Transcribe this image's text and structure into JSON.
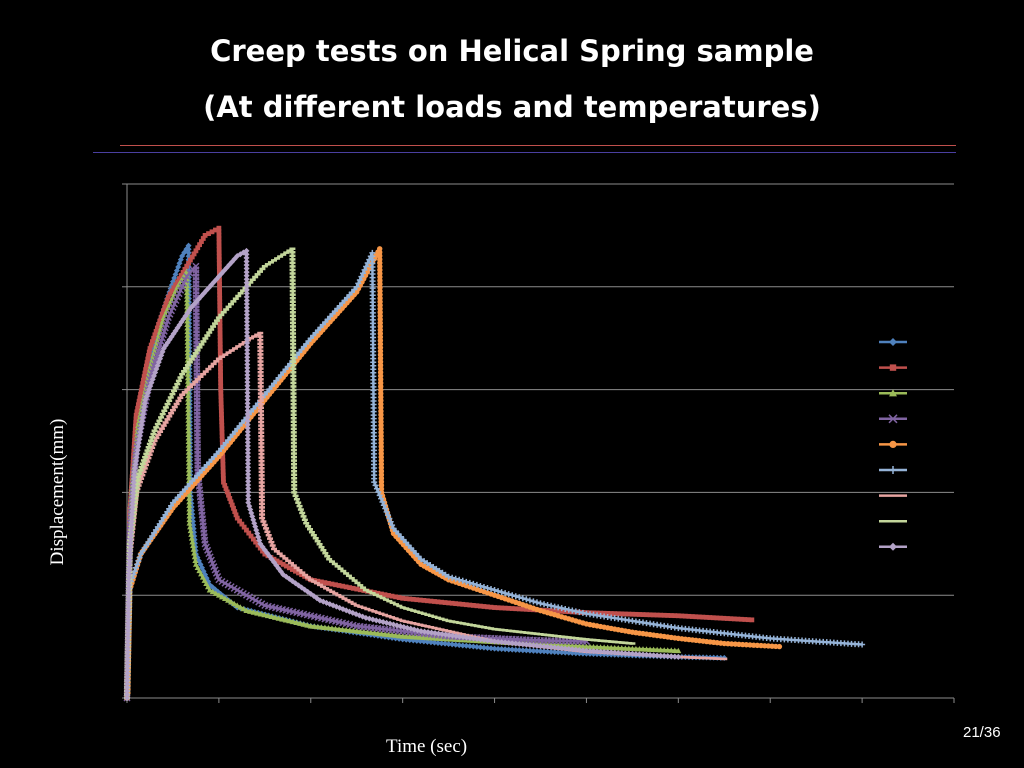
{
  "slide": {
    "title_line1": "Creep tests on Helical Spring sample",
    "title_line2": "(At different loads and temperatures)",
    "page_number": "21/36",
    "rule_colors": [
      "#c0504d",
      "#4a3fa0"
    ]
  },
  "chart_data": {
    "type": "line",
    "title": "",
    "xlabel": "Time (sec)",
    "ylabel": "Displacement(mm)",
    "xlim": [
      0,
      900
    ],
    "ylim": [
      0,
      500
    ],
    "grid": true,
    "legend_placement": "right",
    "series": [
      {
        "color": "#4f81bd",
        "marker": "diamond",
        "load": [
          [
            0,
            0
          ],
          [
            2,
            110
          ],
          [
            5,
            190
          ],
          [
            10,
            250
          ],
          [
            20,
            310
          ],
          [
            35,
            365
          ],
          [
            50,
            405
          ],
          [
            60,
            430
          ],
          [
            67,
            440
          ]
        ],
        "unload": [
          [
            67,
            440
          ],
          [
            69,
            200
          ],
          [
            75,
            140
          ],
          [
            90,
            110
          ],
          [
            120,
            88
          ],
          [
            200,
            70
          ],
          [
            300,
            57
          ],
          [
            400,
            48
          ],
          [
            500,
            43
          ],
          [
            600,
            40
          ],
          [
            650,
            39
          ]
        ]
      },
      {
        "color": "#c0504d",
        "marker": "square",
        "load": [
          [
            0,
            0
          ],
          [
            3,
            180
          ],
          [
            10,
            275
          ],
          [
            25,
            340
          ],
          [
            45,
            390
          ],
          [
            65,
            420
          ],
          [
            85,
            450
          ],
          [
            100,
            457
          ]
        ],
        "unload": [
          [
            100,
            457
          ],
          [
            102,
            300
          ],
          [
            105,
            210
          ],
          [
            120,
            175
          ],
          [
            150,
            140
          ],
          [
            200,
            115
          ],
          [
            300,
            97
          ],
          [
            400,
            88
          ],
          [
            500,
            83
          ],
          [
            600,
            80
          ],
          [
            680,
            76
          ]
        ]
      },
      {
        "color": "#9bbb59",
        "marker": "triangle",
        "load": [
          [
            0,
            0
          ],
          [
            2,
            120
          ],
          [
            5,
            200
          ],
          [
            12,
            265
          ],
          [
            25,
            320
          ],
          [
            40,
            370
          ],
          [
            55,
            400
          ],
          [
            65,
            415
          ]
        ],
        "unload": [
          [
            65,
            415
          ],
          [
            68,
            170
          ],
          [
            75,
            130
          ],
          [
            90,
            105
          ],
          [
            130,
            85
          ],
          [
            200,
            70
          ],
          [
            300,
            60
          ],
          [
            450,
            52
          ],
          [
            550,
            48
          ],
          [
            600,
            46
          ]
        ]
      },
      {
        "color": "#8064a2",
        "marker": "x",
        "load": [
          [
            0,
            0
          ],
          [
            3,
            160
          ],
          [
            10,
            240
          ],
          [
            25,
            310
          ],
          [
            45,
            370
          ],
          [
            65,
            410
          ],
          [
            75,
            420
          ]
        ],
        "unload": [
          [
            75,
            420
          ],
          [
            77,
            220
          ],
          [
            85,
            150
          ],
          [
            100,
            115
          ],
          [
            150,
            90
          ],
          [
            250,
            70
          ],
          [
            350,
            60
          ],
          [
            450,
            56
          ],
          [
            500,
            55
          ]
        ]
      },
      {
        "color": "#f79646",
        "marker": "circle",
        "load": [
          [
            0,
            0
          ],
          [
            1,
            5
          ],
          [
            3,
            105
          ],
          [
            15,
            140
          ],
          [
            50,
            185
          ],
          [
            100,
            235
          ],
          [
            150,
            290
          ],
          [
            200,
            345
          ],
          [
            250,
            395
          ],
          [
            275,
            437
          ]
        ],
        "unload": [
          [
            275,
            437
          ],
          [
            277,
            200
          ],
          [
            290,
            160
          ],
          [
            320,
            130
          ],
          [
            350,
            115
          ],
          [
            400,
            100
          ],
          [
            450,
            85
          ],
          [
            500,
            72
          ],
          [
            550,
            64
          ],
          [
            600,
            58
          ],
          [
            650,
            53
          ],
          [
            710,
            50
          ]
        ]
      },
      {
        "color": "#95b3d7",
        "marker": "plus",
        "load": [
          [
            0,
            0
          ],
          [
            3,
            110
          ],
          [
            15,
            140
          ],
          [
            50,
            190
          ],
          [
            100,
            240
          ],
          [
            150,
            295
          ],
          [
            200,
            350
          ],
          [
            250,
            400
          ],
          [
            267,
            433
          ]
        ],
        "unload": [
          [
            267,
            433
          ],
          [
            269,
            210
          ],
          [
            290,
            165
          ],
          [
            320,
            135
          ],
          [
            350,
            118
          ],
          [
            400,
            105
          ],
          [
            450,
            92
          ],
          [
            500,
            82
          ],
          [
            550,
            75
          ],
          [
            600,
            68
          ],
          [
            650,
            63
          ],
          [
            700,
            58
          ],
          [
            750,
            55
          ],
          [
            800,
            52
          ]
        ]
      },
      {
        "color": "#e6a4a1",
        "marker": "dash",
        "load": [
          [
            0,
            0
          ],
          [
            3,
            140
          ],
          [
            10,
            200
          ],
          [
            30,
            250
          ],
          [
            60,
            295
          ],
          [
            100,
            330
          ],
          [
            135,
            350
          ],
          [
            145,
            355
          ]
        ],
        "unload": [
          [
            145,
            355
          ],
          [
            147,
            175
          ],
          [
            160,
            145
          ],
          [
            200,
            115
          ],
          [
            250,
            90
          ],
          [
            300,
            75
          ],
          [
            400,
            55
          ],
          [
            500,
            45
          ],
          [
            600,
            40
          ],
          [
            650,
            38
          ]
        ]
      },
      {
        "color": "#c3d69b",
        "marker": "dash",
        "load": [
          [
            0,
            0
          ],
          [
            3,
            150
          ],
          [
            12,
            215
          ],
          [
            30,
            260
          ],
          [
            60,
            315
          ],
          [
            100,
            370
          ],
          [
            150,
            420
          ],
          [
            180,
            437
          ]
        ],
        "unload": [
          [
            180,
            437
          ],
          [
            182,
            200
          ],
          [
            195,
            170
          ],
          [
            220,
            135
          ],
          [
            260,
            105
          ],
          [
            300,
            88
          ],
          [
            350,
            75
          ],
          [
            400,
            67
          ],
          [
            450,
            62
          ],
          [
            500,
            57
          ],
          [
            550,
            53
          ]
        ]
      },
      {
        "color": "#b3a2c7",
        "marker": "diamond",
        "load": [
          [
            0,
            0
          ],
          [
            2,
            120
          ],
          [
            8,
            220
          ],
          [
            20,
            290
          ],
          [
            40,
            340
          ],
          [
            70,
            380
          ],
          [
            100,
            410
          ],
          [
            120,
            430
          ],
          [
            130,
            435
          ]
        ],
        "unload": [
          [
            130,
            435
          ],
          [
            132,
            190
          ],
          [
            145,
            150
          ],
          [
            170,
            120
          ],
          [
            210,
            95
          ],
          [
            260,
            78
          ],
          [
            320,
            65
          ],
          [
            400,
            55
          ],
          [
            500,
            46
          ],
          [
            600,
            40
          ]
        ]
      }
    ]
  }
}
